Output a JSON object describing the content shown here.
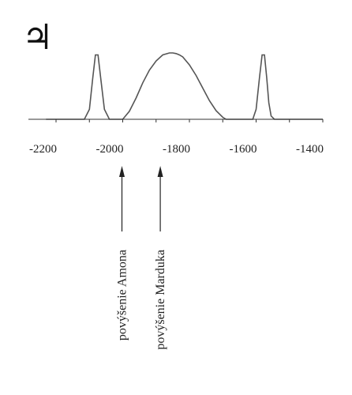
{
  "chart_data": {
    "type": "line",
    "title": "",
    "xlabel": "",
    "ylabel": "",
    "symbol": "♃",
    "xlim": [
      -2200,
      -1400
    ],
    "ylim": [
      0,
      1
    ],
    "grid": false,
    "x_ticks": [
      -2200,
      -2000,
      -1800,
      -1600,
      -1400
    ],
    "series": [
      {
        "x": [
          -2230,
          -2115,
          -2100,
          -2090,
          -2082,
          -2074,
          -2066,
          -2055,
          -2040,
          -2030,
          -2000,
          -1980,
          -1960,
          -1940,
          -1920,
          -1900,
          -1880,
          -1860,
          -1850,
          -1840,
          -1830,
          -1820,
          -1800,
          -1780,
          -1760,
          -1740,
          -1720,
          -1700,
          -1690,
          -1670,
          -1610,
          -1600,
          -1590,
          -1582,
          -1575,
          -1568,
          -1562,
          -1555,
          -1545,
          -1400
        ],
        "y": [
          0,
          0,
          0.15,
          0.62,
          0.97,
          0.97,
          0.62,
          0.15,
          0,
          0,
          0,
          0.12,
          0.32,
          0.55,
          0.74,
          0.88,
          0.97,
          1.0,
          1.0,
          0.99,
          0.97,
          0.94,
          0.82,
          0.66,
          0.47,
          0.28,
          0.13,
          0.03,
          0,
          0,
          0,
          0.15,
          0.62,
          0.97,
          0.97,
          0.62,
          0.25,
          0.05,
          0,
          0
        ]
      }
    ],
    "annotations": [
      {
        "x": -2000,
        "text": "povýšenie Amona"
      },
      {
        "x": -1885,
        "text": "povýšenie Marduka"
      }
    ]
  }
}
